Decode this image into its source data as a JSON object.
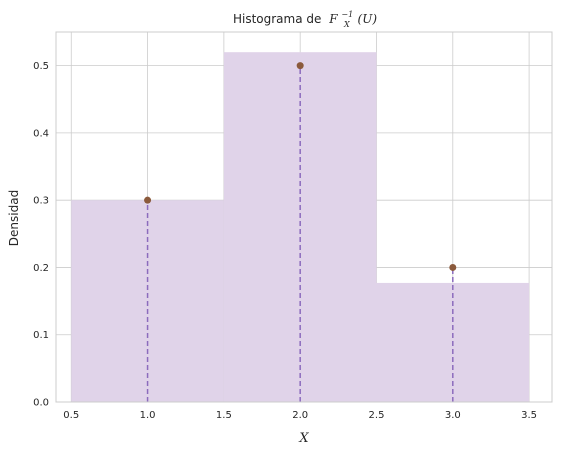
{
  "chart_data": {
    "type": "bar",
    "title_prefix": "Histograma de",
    "title_math": {
      "base": "F",
      "subscript": "X",
      "superscript": "−1",
      "argument": "(U)"
    },
    "xlabel": "X",
    "ylabel": "Densidad",
    "xlim": [
      0.4,
      3.65
    ],
    "ylim": [
      0,
      0.55
    ],
    "xticks": [
      0.5,
      1.0,
      1.5,
      2.0,
      2.5,
      3.0,
      3.5
    ],
    "xtick_labels": [
      "0.5",
      "1.0",
      "1.5",
      "2.0",
      "2.5",
      "3.0",
      "3.5"
    ],
    "yticks": [
      0.0,
      0.1,
      0.2,
      0.3,
      0.4,
      0.5
    ],
    "ytick_labels": [
      "0.0",
      "0.1",
      "0.2",
      "0.3",
      "0.4",
      "0.5"
    ],
    "grid": true,
    "series": [
      {
        "kind": "histogram",
        "bins": [
          {
            "left": 0.5,
            "right": 1.5,
            "value": 0.3
          },
          {
            "left": 1.5,
            "right": 2.5,
            "value": 0.52
          },
          {
            "left": 2.5,
            "right": 3.5,
            "value": 0.177
          }
        ],
        "color": "#e0d3e9"
      },
      {
        "kind": "stem",
        "x": [
          1.0,
          2.0,
          3.0
        ],
        "y": [
          0.3,
          0.5,
          0.2
        ],
        "line_color": "#8c6bbd",
        "marker_color": "#8b5a3c"
      }
    ],
    "colors": {
      "grid": "#cccccc",
      "spine": "#cccccc",
      "text": "#262626"
    }
  }
}
